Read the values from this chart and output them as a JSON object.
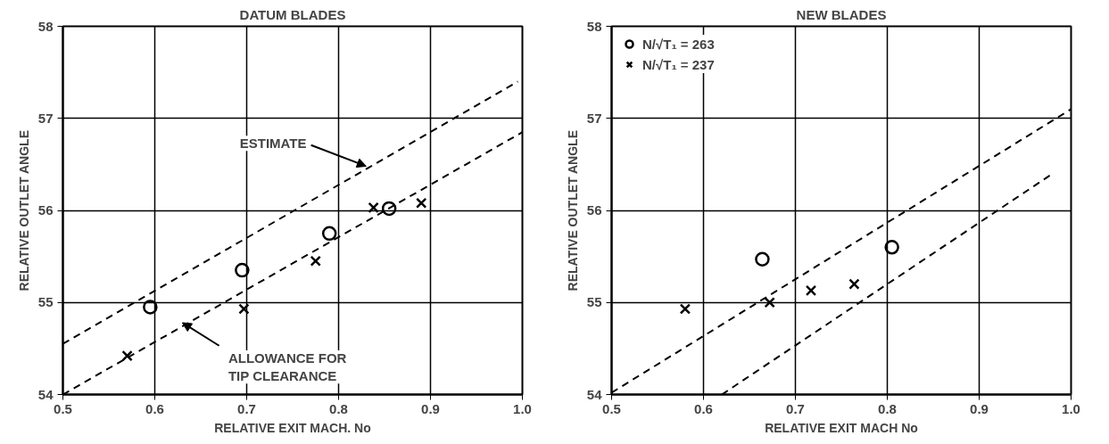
{
  "chart_data": [
    {
      "type": "scatter",
      "title": "DATUM BLADES",
      "xlabel": "RELATIVE EXIT MACH. No",
      "ylabel": "RELATIVE OUTLET ANGLE",
      "xlim": [
        0.5,
        1.0
      ],
      "ylim": [
        54,
        58
      ],
      "xticks": [
        0.5,
        0.6,
        0.7,
        0.8,
        0.9,
        {
          "value": 1.0,
          "label": "1.0"
        }
      ],
      "yticks": [
        54,
        55,
        56,
        57,
        58
      ],
      "grid": true,
      "legend": false,
      "series": [
        {
          "marker": "circle",
          "color": "#000000",
          "x": [
            0.595,
            0.695,
            0.79,
            0.855
          ],
          "values": [
            54.95,
            55.35,
            55.75,
            56.02
          ]
        },
        {
          "marker": "cross",
          "color": "#000000",
          "x": [
            0.57,
            0.697,
            0.775,
            0.838,
            0.89
          ],
          "values": [
            54.42,
            54.93,
            55.45,
            56.03,
            56.08
          ]
        },
        {
          "type": "line",
          "line_style": "dashed",
          "color": "#000000",
          "x": [
            0.5,
            0.995
          ],
          "values": [
            54.55,
            57.4
          ]
        },
        {
          "type": "line",
          "line_style": "dashed",
          "color": "#000000",
          "x": [
            0.5,
            1.0
          ],
          "values": [
            54.0,
            56.85
          ]
        }
      ],
      "annotations": [
        {
          "text": "ESTIMATE",
          "x": 0.83,
          "y": 56.48
        },
        {
          "text": "ALLOWANCE FOR\nTIP CLEARANCE",
          "x": 0.63,
          "y": 54.78
        }
      ]
    },
    {
      "type": "scatter",
      "title": "NEW BLADES",
      "xlabel": "RELATIVE EXIT MACH No",
      "ylabel": "RELATIVE OUTLET ANGLE",
      "xlim": [
        0.5,
        1.0
      ],
      "ylim": [
        54,
        58
      ],
      "xticks": [
        0.5,
        0.6,
        0.7,
        0.8,
        0.9,
        {
          "value": 1.0,
          "label": "1.0"
        }
      ],
      "yticks": [
        54,
        55,
        56,
        57,
        58
      ],
      "grid": true,
      "legend": "top left",
      "series": [
        {
          "name": "N/√T₁ = 263",
          "marker": "circle",
          "color": "#000000",
          "x": [
            0.664,
            0.805
          ],
          "values": [
            55.47,
            55.6
          ]
        },
        {
          "name": "N/√T₁ = 237",
          "marker": "cross",
          "color": "#000000",
          "x": [
            0.58,
            0.672,
            0.717,
            0.764
          ],
          "values": [
            54.93,
            55.0,
            55.13,
            55.2
          ]
        },
        {
          "type": "line",
          "line_style": "dashed",
          "color": "#000000",
          "x": [
            0.5,
            1.0
          ],
          "values": [
            54.02,
            57.1
          ]
        },
        {
          "type": "line",
          "line_style": "dashed",
          "color": "#000000",
          "x": [
            0.62,
            0.98
          ],
          "values": [
            54.0,
            56.4
          ]
        }
      ]
    }
  ]
}
